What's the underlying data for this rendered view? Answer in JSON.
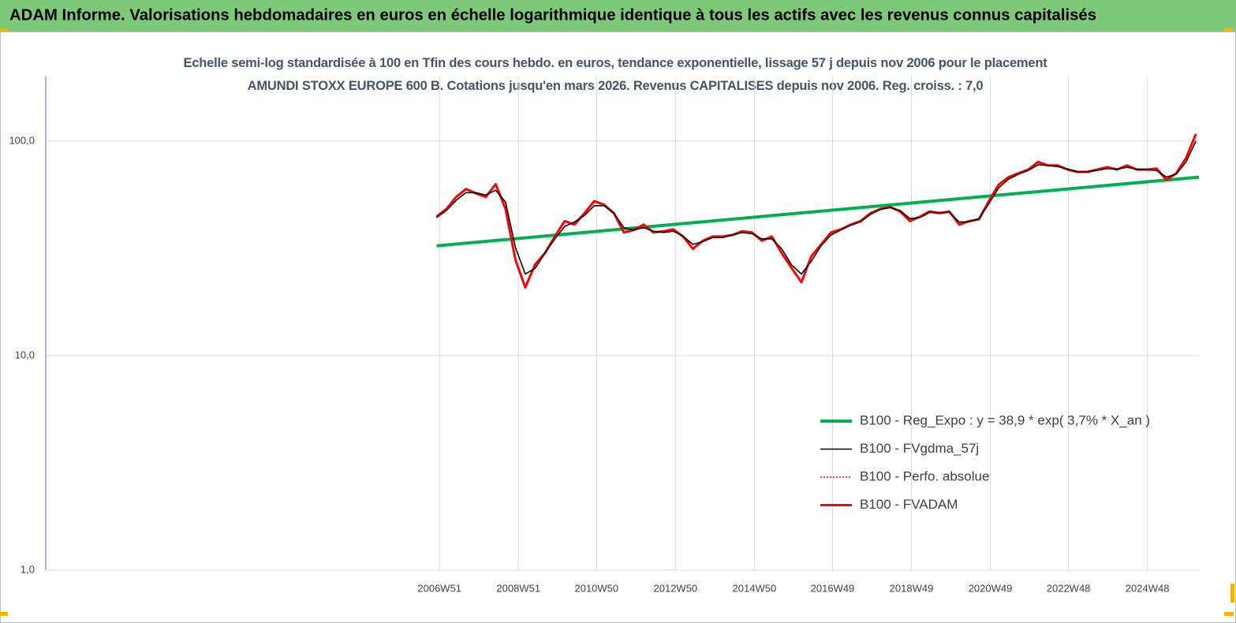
{
  "header": {
    "title": "ADAM Informe. Valorisations hebdomadaires en euros en échelle logarithmique identique à tous les actifs avec les revenus connus capitalisés"
  },
  "chart_data": {
    "type": "line",
    "title": "Echelle semi-log standardisée à 100 en Tfin des cours hebdo. en euros, tendance exponentielle, lissage 57 j depuis nov 2006 pour le placement AMUNDI STOXX EUROPE 600 B. Cotations jusqu'en mars 2026. Revenus CAPITALISES depuis nov 2006. Reg. croiss. : 7,0",
    "y_scale": "log",
    "grid": true,
    "legend_position": "right",
    "xlim": [
      "1996W52",
      "2026W13"
    ],
    "xticks": [
      "2006W51",
      "2008W51",
      "2010W50",
      "2012W50",
      "2014W50",
      "2016W49",
      "2018W49",
      "2020W49",
      "2022W48",
      "2024W48"
    ],
    "ylim": [
      1,
      200
    ],
    "yticks": [
      {
        "value": 1,
        "label": "1,0"
      },
      {
        "value": 10,
        "label": "10,0"
      },
      {
        "value": 100,
        "label": "100,0"
      }
    ],
    "series": [
      {
        "name": "B100 - Reg_Expo : y = 38,9 * exp( 3,7% * X_an )",
        "color": "#00b050",
        "width": 4,
        "style": "solid",
        "x": [
          "2006W47",
          "2026W12"
        ],
        "values": [
          32.5,
          67.9
        ]
      },
      {
        "name": "B100 - FVgdma_57j",
        "color": "#000000",
        "width": 1.6,
        "style": "solid",
        "x": [
          "2006W47",
          "2007W08",
          "2007W21",
          "2007W34",
          "2007W47",
          "2008W08",
          "2008W21",
          "2008W34",
          "2008W47",
          "2009W08",
          "2009W21",
          "2009W34",
          "2009W47",
          "2010W08",
          "2010W21",
          "2010W34",
          "2010W47",
          "2011W08",
          "2011W21",
          "2011W34",
          "2011W47",
          "2012W08",
          "2012W21",
          "2012W34",
          "2012W47",
          "2013W08",
          "2013W21",
          "2013W34",
          "2013W47",
          "2014W08",
          "2014W21",
          "2014W34",
          "2014W47",
          "2015W08",
          "2015W21",
          "2015W34",
          "2015W47",
          "2016W08",
          "2016W21",
          "2016W34",
          "2016W47",
          "2017W08",
          "2017W21",
          "2017W34",
          "2017W47",
          "2018W08",
          "2018W21",
          "2018W34",
          "2018W47",
          "2019W08",
          "2019W21",
          "2019W34",
          "2019W47",
          "2020W08",
          "2020W21",
          "2020W34",
          "2020W47",
          "2021W08",
          "2021W21",
          "2021W34",
          "2021W47",
          "2022W08",
          "2022W21",
          "2022W34",
          "2022W47",
          "2023W08",
          "2023W21",
          "2023W34",
          "2023W47",
          "2024W08",
          "2024W21",
          "2024W34",
          "2024W47",
          "2025W08",
          "2025W21",
          "2025W34",
          "2025W47",
          "2026W08"
        ],
        "values": [
          44,
          47.5,
          53,
          57.5,
          57.5,
          56,
          59,
          52,
          32,
          24,
          25.5,
          30,
          35,
          40,
          42,
          45,
          50,
          50,
          46,
          39.5,
          38.5,
          39.5,
          38,
          37.5,
          38,
          36,
          33,
          34,
          35.5,
          35.5,
          36.5,
          37.5,
          37,
          35,
          35,
          31.5,
          26.5,
          24,
          27.5,
          32.5,
          36.5,
          38.5,
          40.5,
          42,
          45.5,
          48,
          49,
          47.5,
          43.5,
          44,
          46.5,
          46.5,
          46.5,
          42,
          42,
          43.5,
          51,
          60.5,
          66.5,
          70,
          73,
          77.5,
          77,
          76,
          74,
          72,
          72,
          73,
          74.5,
          74,
          75.5,
          74,
          73.5,
          73,
          68,
          70,
          80,
          100
        ]
      },
      {
        "name": "B100 - Perfo. absolue",
        "color": "#ff0000",
        "width": 1.5,
        "style": "dotted",
        "x": [
          "2006W47",
          "2007W08",
          "2007W21",
          "2007W34",
          "2007W47",
          "2008W08",
          "2008W21",
          "2008W34",
          "2008W47",
          "2009W08",
          "2009W21",
          "2009W34",
          "2009W47",
          "2010W08",
          "2010W21",
          "2010W34",
          "2010W47",
          "2011W08",
          "2011W21",
          "2011W34",
          "2011W47",
          "2012W08",
          "2012W21",
          "2012W34",
          "2012W47",
          "2013W08",
          "2013W21",
          "2013W34",
          "2013W47",
          "2014W08",
          "2014W21",
          "2014W34",
          "2014W47",
          "2015W08",
          "2015W21",
          "2015W34",
          "2015W47",
          "2016W08",
          "2016W21",
          "2016W34",
          "2016W47",
          "2017W08",
          "2017W21",
          "2017W34",
          "2017W47",
          "2018W08",
          "2018W21",
          "2018W34",
          "2018W47",
          "2019W08",
          "2019W21",
          "2019W34",
          "2019W47",
          "2020W08",
          "2020W21",
          "2020W34",
          "2020W47",
          "2021W08",
          "2021W21",
          "2021W34",
          "2021W47",
          "2022W08",
          "2022W21",
          "2022W34",
          "2022W47",
          "2023W08",
          "2023W21",
          "2023W34",
          "2023W47",
          "2024W08",
          "2024W21",
          "2024W34",
          "2024W47",
          "2025W08",
          "2025W21",
          "2025W34",
          "2025W47",
          "2026W08"
        ],
        "values": [
          44.4,
          48.3,
          54.9,
          59.8,
          57,
          54.9,
          63,
          48.3,
          28,
          20.8,
          26.6,
          30.1,
          35.9,
          42.4,
          40.8,
          46.1,
          52.5,
          50.5,
          46.1,
          37.5,
          38.5,
          40.8,
          37.5,
          38,
          38.8,
          35.9,
          31.5,
          34.3,
          35.9,
          35.9,
          36.5,
          38,
          37.5,
          34.3,
          35.9,
          30.1,
          25.6,
          22,
          29,
          33,
          37.5,
          38.8,
          40.8,
          42.4,
          46.1,
          48.3,
          49.3,
          47,
          42.4,
          44.4,
          47,
          46.1,
          47,
          40.8,
          42.4,
          43.2,
          52.5,
          62.6,
          67.9,
          70.8,
          73.7,
          80,
          77,
          77,
          73.7,
          71.8,
          71.8,
          73.7,
          75.6,
          73.7,
          77,
          73.7,
          73.7,
          74.4,
          66,
          70.8,
          83.4,
          108
        ]
      },
      {
        "name": "B100 - FVADAM",
        "color": "#ff0000",
        "width": 3,
        "style": "solid",
        "x": [
          "2006W47",
          "2007W08",
          "2007W21",
          "2007W34",
          "2007W47",
          "2008W08",
          "2008W21",
          "2008W34",
          "2008W47",
          "2009W08",
          "2009W21",
          "2009W34",
          "2009W47",
          "2010W08",
          "2010W21",
          "2010W34",
          "2010W47",
          "2011W08",
          "2011W21",
          "2011W34",
          "2011W47",
          "2012W08",
          "2012W21",
          "2012W34",
          "2012W47",
          "2013W08",
          "2013W21",
          "2013W34",
          "2013W47",
          "2014W08",
          "2014W21",
          "2014W34",
          "2014W47",
          "2015W08",
          "2015W21",
          "2015W34",
          "2015W47",
          "2016W08",
          "2016W21",
          "2016W34",
          "2016W47",
          "2017W08",
          "2017W21",
          "2017W34",
          "2017W47",
          "2018W08",
          "2018W21",
          "2018W34",
          "2018W47",
          "2019W08",
          "2019W21",
          "2019W34",
          "2019W47",
          "2020W08",
          "2020W21",
          "2020W34",
          "2020W47",
          "2021W08",
          "2021W21",
          "2021W34",
          "2021W47",
          "2022W08",
          "2022W21",
          "2022W34",
          "2022W47",
          "2023W08",
          "2023W21",
          "2023W34",
          "2023W47",
          "2024W08",
          "2024W21",
          "2024W34",
          "2024W47",
          "2025W08",
          "2025W21",
          "2025W34",
          "2025W47",
          "2026W08"
        ],
        "values": [
          44.4,
          48.3,
          54.9,
          59.8,
          57,
          54.9,
          63,
          48.3,
          28,
          20.8,
          26.6,
          30.1,
          35.9,
          42.4,
          40.8,
          46.1,
          52.5,
          50.5,
          46.1,
          37.5,
          38.5,
          40.8,
          37.5,
          38,
          38.8,
          35.9,
          31.5,
          34.3,
          35.9,
          35.9,
          36.5,
          38,
          37.5,
          34.3,
          35.9,
          30.1,
          25.6,
          22,
          29,
          33,
          37.5,
          38.8,
          40.8,
          42.4,
          46.1,
          48.3,
          49.3,
          47,
          42.4,
          44.4,
          47,
          46.1,
          47,
          40.8,
          42.4,
          43.2,
          52.5,
          62.6,
          67.9,
          70.8,
          73.7,
          80,
          77,
          77,
          73.7,
          71.8,
          71.8,
          73.7,
          75.6,
          73.7,
          77,
          73.7,
          73.7,
          74.4,
          66,
          70.8,
          83.4,
          108
        ]
      }
    ]
  }
}
